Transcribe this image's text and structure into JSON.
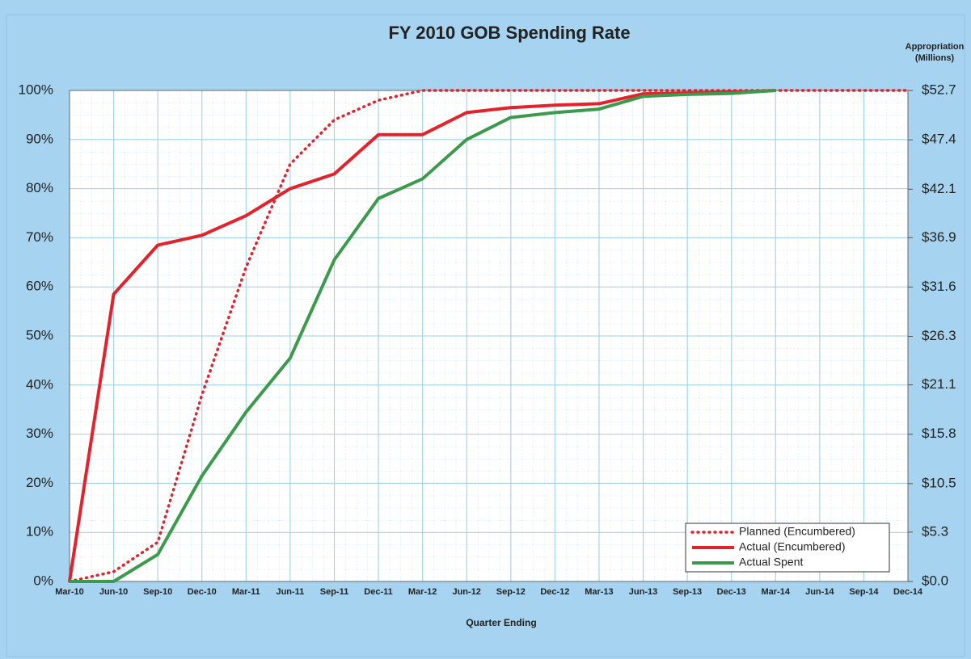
{
  "chart_data": {
    "type": "line",
    "title": "FY 2010 GOB Spending Rate",
    "xlabel": "Quarter Ending",
    "y2label": [
      "Appropriation",
      "(Millions)"
    ],
    "categories": [
      "Mar-10",
      "Jun-10",
      "Sep-10",
      "Dec-10",
      "Mar-11",
      "Jun-11",
      "Sep-11",
      "Dec-11",
      "Mar-12",
      "Jun-12",
      "Sep-12",
      "Dec-12",
      "Mar-13",
      "Jun-13",
      "Sep-13",
      "Dec-13",
      "Mar-14",
      "Jun-14",
      "Sep-14",
      "Dec-14"
    ],
    "series": [
      {
        "name": "Planned (Encumbered)",
        "color": "#e3222c",
        "style": "dotted",
        "values": [
          0,
          2,
          8,
          38,
          64,
          85,
          94,
          98,
          100,
          100,
          100,
          100,
          100,
          100,
          100,
          100,
          100,
          100,
          100,
          100
        ]
      },
      {
        "name": "Actual (Encumbered)",
        "color": "#e3222c",
        "style": "solid",
        "values": [
          0,
          58.5,
          68.5,
          70.5,
          74.5,
          80,
          83,
          91,
          91,
          95.5,
          96.5,
          97,
          97.3,
          99.3,
          99.5,
          99.6,
          100,
          null,
          null,
          null
        ]
      },
      {
        "name": "Actual Spent",
        "color": "#3b9a4c",
        "style": "solid",
        "values": [
          0,
          0,
          5.5,
          21.5,
          34.5,
          45.5,
          65.5,
          78,
          82,
          90,
          94.5,
          95.5,
          96.2,
          98.8,
          99.2,
          99.4,
          100,
          null,
          null,
          null
        ]
      }
    ],
    "ylim": [
      0,
      100
    ],
    "yticks": [
      {
        "value": 0,
        "label": "0%"
      },
      {
        "value": 10,
        "label": "10%"
      },
      {
        "value": 20,
        "label": "20%"
      },
      {
        "value": 30,
        "label": "30%"
      },
      {
        "value": 40,
        "label": "40%"
      },
      {
        "value": 50,
        "label": "50%"
      },
      {
        "value": 60,
        "label": "60%"
      },
      {
        "value": 70,
        "label": "70%"
      },
      {
        "value": 80,
        "label": "80%"
      },
      {
        "value": 90,
        "label": "90%"
      },
      {
        "value": 100,
        "label": "100%"
      }
    ],
    "y2lim": [
      0,
      52.7
    ],
    "y2ticks": [
      {
        "value": 0,
        "label": "$0.0"
      },
      {
        "value": 5.3,
        "label": "$5.3"
      },
      {
        "value": 10.5,
        "label": "$10.5"
      },
      {
        "value": 15.8,
        "label": "$15.8"
      },
      {
        "value": 21.1,
        "label": "$21.1"
      },
      {
        "value": 26.3,
        "label": "$26.3"
      },
      {
        "value": 31.6,
        "label": "$31.6"
      },
      {
        "value": 36.9,
        "label": "$36.9"
      },
      {
        "value": 42.1,
        "label": "$42.1"
      },
      {
        "value": 47.4,
        "label": "$47.4"
      },
      {
        "value": 52.7,
        "label": "$52.7"
      }
    ],
    "grid": true,
    "legend": "lower right"
  }
}
